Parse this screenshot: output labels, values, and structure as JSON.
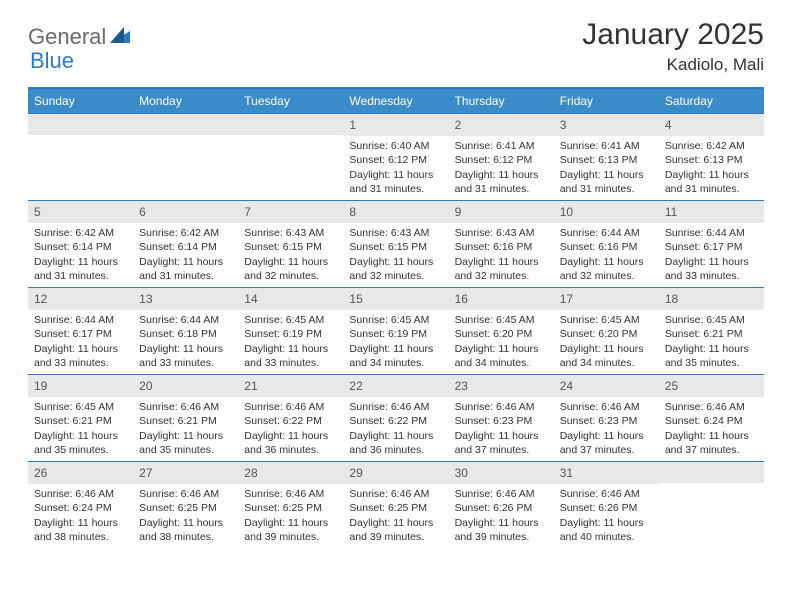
{
  "brand": {
    "part1": "General",
    "part2": "Blue"
  },
  "title": "January 2025",
  "location": "Kadiolo, Mali",
  "style": {
    "accent": "#3b8bc9",
    "border": "#2f7bbf",
    "daynum_bg": "#e8e8e8",
    "text": "#333333",
    "logo_gray": "#6b6b6b",
    "logo_blue": "#2f7bbf",
    "page_bg": "#ffffff",
    "title_fontsize": 30,
    "location_fontsize": 17,
    "weekday_fontsize": 12,
    "body_fontsize": 10.5
  },
  "weekdays": [
    "Sunday",
    "Monday",
    "Tuesday",
    "Wednesday",
    "Thursday",
    "Friday",
    "Saturday"
  ],
  "weeks": [
    [
      null,
      null,
      null,
      {
        "n": "1",
        "sr": "6:40 AM",
        "ss": "6:12 PM",
        "dh": "11",
        "dm": "31"
      },
      {
        "n": "2",
        "sr": "6:41 AM",
        "ss": "6:12 PM",
        "dh": "11",
        "dm": "31"
      },
      {
        "n": "3",
        "sr": "6:41 AM",
        "ss": "6:13 PM",
        "dh": "11",
        "dm": "31"
      },
      {
        "n": "4",
        "sr": "6:42 AM",
        "ss": "6:13 PM",
        "dh": "11",
        "dm": "31"
      }
    ],
    [
      {
        "n": "5",
        "sr": "6:42 AM",
        "ss": "6:14 PM",
        "dh": "11",
        "dm": "31"
      },
      {
        "n": "6",
        "sr": "6:42 AM",
        "ss": "6:14 PM",
        "dh": "11",
        "dm": "31"
      },
      {
        "n": "7",
        "sr": "6:43 AM",
        "ss": "6:15 PM",
        "dh": "11",
        "dm": "32"
      },
      {
        "n": "8",
        "sr": "6:43 AM",
        "ss": "6:15 PM",
        "dh": "11",
        "dm": "32"
      },
      {
        "n": "9",
        "sr": "6:43 AM",
        "ss": "6:16 PM",
        "dh": "11",
        "dm": "32"
      },
      {
        "n": "10",
        "sr": "6:44 AM",
        "ss": "6:16 PM",
        "dh": "11",
        "dm": "32"
      },
      {
        "n": "11",
        "sr": "6:44 AM",
        "ss": "6:17 PM",
        "dh": "11",
        "dm": "33"
      }
    ],
    [
      {
        "n": "12",
        "sr": "6:44 AM",
        "ss": "6:17 PM",
        "dh": "11",
        "dm": "33"
      },
      {
        "n": "13",
        "sr": "6:44 AM",
        "ss": "6:18 PM",
        "dh": "11",
        "dm": "33"
      },
      {
        "n": "14",
        "sr": "6:45 AM",
        "ss": "6:19 PM",
        "dh": "11",
        "dm": "33"
      },
      {
        "n": "15",
        "sr": "6:45 AM",
        "ss": "6:19 PM",
        "dh": "11",
        "dm": "34"
      },
      {
        "n": "16",
        "sr": "6:45 AM",
        "ss": "6:20 PM",
        "dh": "11",
        "dm": "34"
      },
      {
        "n": "17",
        "sr": "6:45 AM",
        "ss": "6:20 PM",
        "dh": "11",
        "dm": "34"
      },
      {
        "n": "18",
        "sr": "6:45 AM",
        "ss": "6:21 PM",
        "dh": "11",
        "dm": "35"
      }
    ],
    [
      {
        "n": "19",
        "sr": "6:45 AM",
        "ss": "6:21 PM",
        "dh": "11",
        "dm": "35"
      },
      {
        "n": "20",
        "sr": "6:46 AM",
        "ss": "6:21 PM",
        "dh": "11",
        "dm": "35"
      },
      {
        "n": "21",
        "sr": "6:46 AM",
        "ss": "6:22 PM",
        "dh": "11",
        "dm": "36"
      },
      {
        "n": "22",
        "sr": "6:46 AM",
        "ss": "6:22 PM",
        "dh": "11",
        "dm": "36"
      },
      {
        "n": "23",
        "sr": "6:46 AM",
        "ss": "6:23 PM",
        "dh": "11",
        "dm": "37"
      },
      {
        "n": "24",
        "sr": "6:46 AM",
        "ss": "6:23 PM",
        "dh": "11",
        "dm": "37"
      },
      {
        "n": "25",
        "sr": "6:46 AM",
        "ss": "6:24 PM",
        "dh": "11",
        "dm": "37"
      }
    ],
    [
      {
        "n": "26",
        "sr": "6:46 AM",
        "ss": "6:24 PM",
        "dh": "11",
        "dm": "38"
      },
      {
        "n": "27",
        "sr": "6:46 AM",
        "ss": "6:25 PM",
        "dh": "11",
        "dm": "38"
      },
      {
        "n": "28",
        "sr": "6:46 AM",
        "ss": "6:25 PM",
        "dh": "11",
        "dm": "39"
      },
      {
        "n": "29",
        "sr": "6:46 AM",
        "ss": "6:25 PM",
        "dh": "11",
        "dm": "39"
      },
      {
        "n": "30",
        "sr": "6:46 AM",
        "ss": "6:26 PM",
        "dh": "11",
        "dm": "39"
      },
      {
        "n": "31",
        "sr": "6:46 AM",
        "ss": "6:26 PM",
        "dh": "11",
        "dm": "40"
      },
      null
    ]
  ],
  "labels": {
    "sunrise": "Sunrise: ",
    "sunset": "Sunset: ",
    "daylight_a": "Daylight: ",
    "daylight_b": " hours and ",
    "daylight_c": " minutes."
  }
}
